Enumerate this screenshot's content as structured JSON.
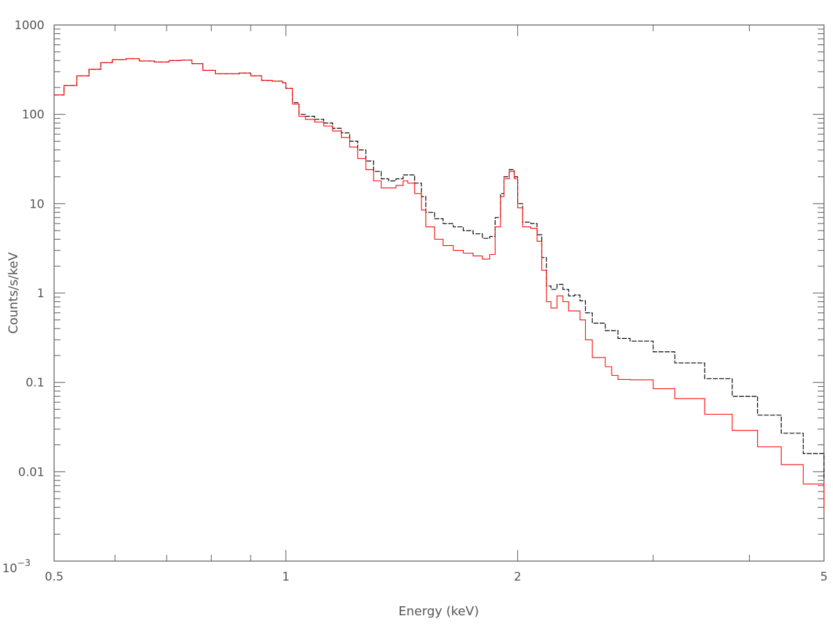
{
  "chart_data": {
    "type": "line",
    "title": "",
    "xlabel": "Energy (keV)",
    "ylabel": "Counts/s/keV",
    "xscale": "log",
    "yscale": "log",
    "xlim": [
      0.5,
      5
    ],
    "ylim": [
      0.001,
      1000
    ],
    "grid": false,
    "legend": "none",
    "x_ticks": [
      {
        "value": 0.5,
        "label": "0.5"
      },
      {
        "value": 1,
        "label": "1"
      },
      {
        "value": 2,
        "label": "2"
      },
      {
        "value": 5,
        "label": "5"
      }
    ],
    "y_ticks": [
      {
        "value": 0.001,
        "label": "10",
        "exponent": "−3"
      },
      {
        "value": 0.01,
        "label": "0.01"
      },
      {
        "value": 0.1,
        "label": "0.1"
      },
      {
        "value": 1,
        "label": "1"
      },
      {
        "value": 10,
        "label": "10"
      },
      {
        "value": 100,
        "label": "100"
      },
      {
        "value": 1000,
        "label": "1000"
      }
    ],
    "series": [
      {
        "color": "#000000",
        "style": "step",
        "points": [
          [
            0.5,
            165
          ],
          [
            0.515,
            210
          ],
          [
            0.535,
            270
          ],
          [
            0.555,
            320
          ],
          [
            0.575,
            380
          ],
          [
            0.595,
            410
          ],
          [
            0.62,
            420
          ],
          [
            0.645,
            395
          ],
          [
            0.675,
            385
          ],
          [
            0.705,
            400
          ],
          [
            0.73,
            405
          ],
          [
            0.755,
            370
          ],
          [
            0.78,
            310
          ],
          [
            0.81,
            285
          ],
          [
            0.84,
            285
          ],
          [
            0.87,
            290
          ],
          [
            0.9,
            270
          ],
          [
            0.93,
            240
          ],
          [
            0.96,
            235
          ],
          [
            0.99,
            225
          ],
          [
            1.0,
            195
          ],
          [
            1.02,
            135
          ],
          [
            1.04,
            100
          ],
          [
            1.06,
            95
          ],
          [
            1.09,
            88
          ],
          [
            1.12,
            80
          ],
          [
            1.15,
            70
          ],
          [
            1.18,
            62
          ],
          [
            1.21,
            50
          ],
          [
            1.24,
            40
          ],
          [
            1.27,
            30
          ],
          [
            1.3,
            23
          ],
          [
            1.33,
            19
          ],
          [
            1.36,
            18
          ],
          [
            1.39,
            19
          ],
          [
            1.42,
            21
          ],
          [
            1.44,
            21
          ],
          [
            1.47,
            17
          ],
          [
            1.5,
            12
          ],
          [
            1.52,
            8
          ],
          [
            1.56,
            6.8
          ],
          [
            1.6,
            6.0
          ],
          [
            1.65,
            5.5
          ],
          [
            1.7,
            5.0
          ],
          [
            1.75,
            4.6
          ],
          [
            1.8,
            4.1
          ],
          [
            1.84,
            4.3
          ],
          [
            1.87,
            7.0
          ],
          [
            1.9,
            13
          ],
          [
            1.92,
            20
          ],
          [
            1.95,
            24
          ],
          [
            1.98,
            20
          ],
          [
            2.0,
            10
          ],
          [
            2.03,
            6.2
          ],
          [
            2.08,
            6.0
          ],
          [
            2.12,
            4.5
          ],
          [
            2.15,
            2.5
          ],
          [
            2.18,
            1.2
          ],
          [
            2.21,
            1.1
          ],
          [
            2.25,
            1.25
          ],
          [
            2.29,
            1.1
          ],
          [
            2.33,
            0.93
          ],
          [
            2.37,
            0.95
          ],
          [
            2.41,
            0.82
          ],
          [
            2.45,
            0.6
          ],
          [
            2.5,
            0.46
          ],
          [
            2.6,
            0.38
          ],
          [
            2.7,
            0.31
          ],
          [
            2.8,
            0.29
          ],
          [
            3.0,
            0.22
          ],
          [
            3.2,
            0.165
          ],
          [
            3.5,
            0.11
          ],
          [
            3.8,
            0.07
          ],
          [
            4.1,
            0.043
          ],
          [
            4.4,
            0.027
          ],
          [
            4.7,
            0.016
          ],
          [
            5.0,
            0.008
          ]
        ]
      },
      {
        "color": "#ff0000",
        "style": "step",
        "points": [
          [
            0.5,
            165
          ],
          [
            0.515,
            210
          ],
          [
            0.535,
            270
          ],
          [
            0.555,
            320
          ],
          [
            0.575,
            380
          ],
          [
            0.595,
            410
          ],
          [
            0.62,
            420
          ],
          [
            0.645,
            395
          ],
          [
            0.675,
            385
          ],
          [
            0.705,
            400
          ],
          [
            0.73,
            405
          ],
          [
            0.755,
            370
          ],
          [
            0.78,
            310
          ],
          [
            0.81,
            285
          ],
          [
            0.84,
            285
          ],
          [
            0.87,
            290
          ],
          [
            0.9,
            270
          ],
          [
            0.93,
            240
          ],
          [
            0.96,
            235
          ],
          [
            0.99,
            225
          ],
          [
            1.0,
            195
          ],
          [
            1.02,
            130
          ],
          [
            1.04,
            95
          ],
          [
            1.06,
            88
          ],
          [
            1.09,
            82
          ],
          [
            1.12,
            74
          ],
          [
            1.15,
            65
          ],
          [
            1.18,
            55
          ],
          [
            1.21,
            43
          ],
          [
            1.24,
            32
          ],
          [
            1.27,
            24
          ],
          [
            1.3,
            18
          ],
          [
            1.33,
            15
          ],
          [
            1.36,
            15
          ],
          [
            1.39,
            16
          ],
          [
            1.42,
            18
          ],
          [
            1.44,
            17
          ],
          [
            1.47,
            13
          ],
          [
            1.5,
            8.5
          ],
          [
            1.52,
            5.5
          ],
          [
            1.56,
            4.0
          ],
          [
            1.6,
            3.4
          ],
          [
            1.65,
            3.0
          ],
          [
            1.7,
            2.8
          ],
          [
            1.75,
            2.6
          ],
          [
            1.8,
            2.4
          ],
          [
            1.84,
            2.7
          ],
          [
            1.87,
            5.5
          ],
          [
            1.9,
            12
          ],
          [
            1.92,
            19
          ],
          [
            1.95,
            23
          ],
          [
            1.98,
            19
          ],
          [
            2.0,
            9
          ],
          [
            2.03,
            5.5
          ],
          [
            2.08,
            5.3
          ],
          [
            2.12,
            3.8
          ],
          [
            2.15,
            1.8
          ],
          [
            2.18,
            0.8
          ],
          [
            2.21,
            0.68
          ],
          [
            2.25,
            0.93
          ],
          [
            2.29,
            0.8
          ],
          [
            2.33,
            0.63
          ],
          [
            2.37,
            0.63
          ],
          [
            2.41,
            0.5
          ],
          [
            2.45,
            0.3
          ],
          [
            2.5,
            0.19
          ],
          [
            2.6,
            0.15
          ],
          [
            2.65,
            0.12
          ],
          [
            2.7,
            0.108
          ],
          [
            2.8,
            0.107
          ],
          [
            3.0,
            0.085
          ],
          [
            3.2,
            0.066
          ],
          [
            3.5,
            0.044
          ],
          [
            3.8,
            0.029
          ],
          [
            4.1,
            0.019
          ],
          [
            4.4,
            0.012
          ],
          [
            4.7,
            0.0073
          ],
          [
            5.0,
            0.0038
          ]
        ]
      }
    ]
  }
}
